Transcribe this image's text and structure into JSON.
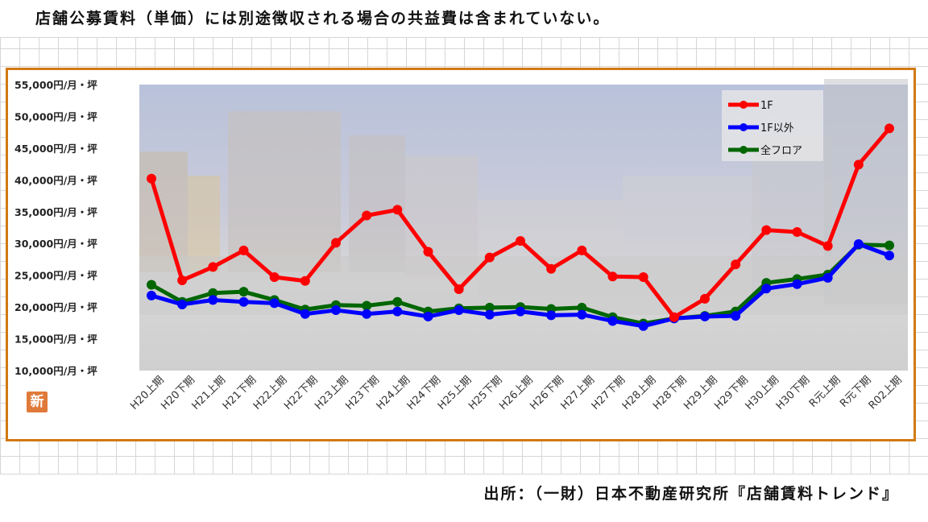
{
  "header": {
    "note": "店舗公募賃料（単価）には別途徴収される場合の共益費は含まれていない。"
  },
  "footer": {
    "source": "出所：（一財）日本不動産研究所『店舗賃料トレンド』"
  },
  "badge": {
    "label": "新"
  },
  "chart_data": {
    "type": "line",
    "title": "",
    "xlabel": "",
    "ylabel": "",
    "ylim": [
      10000,
      55000
    ],
    "y_ticks": [
      55000,
      50000,
      45000,
      40000,
      35000,
      30000,
      25000,
      20000,
      15000,
      10000
    ],
    "y_tick_labels": [
      "55,000円/月・坪",
      "50,000円/月・坪",
      "45,000円/月・坪",
      "40,000円/月・坪",
      "35,000円/月・坪",
      "30,000円/月・坪",
      "25,000円/月・坪",
      "20,000円/月・坪",
      "15,000円/月・坪",
      "10,000円/月・坪"
    ],
    "categories": [
      "H20上期",
      "H20下期",
      "H21上期",
      "H21下期",
      "H22上期",
      "H22下期",
      "H23上期",
      "H23下期",
      "H24上期",
      "H24下期",
      "H25上期",
      "H25下期",
      "H26上期",
      "H26下期",
      "H27上期",
      "H27下期",
      "H28上期",
      "H28下期",
      "H29上期",
      "H29下期",
      "H30上期",
      "H30下期",
      "R元上期",
      "R元下期",
      "R02上期"
    ],
    "series": [
      {
        "name": "1F",
        "color": "#ff0000",
        "values": [
          40200,
          24200,
          26300,
          28900,
          24700,
          24100,
          30100,
          34400,
          35300,
          28700,
          22800,
          27800,
          30400,
          26000,
          28900,
          24800,
          24700,
          18400,
          21300,
          26700,
          32100,
          31800,
          29600,
          42400,
          48100
        ]
      },
      {
        "name": "1F以外",
        "color": "#0000ff",
        "values": [
          21800,
          20400,
          21100,
          20800,
          20600,
          18900,
          19500,
          18900,
          19300,
          18500,
          19500,
          18800,
          19300,
          18700,
          18800,
          17800,
          17000,
          18200,
          18500,
          18600,
          22900,
          23600,
          24600,
          29900,
          28100
        ]
      },
      {
        "name": "全フロア",
        "color": "#006600",
        "values": [
          23500,
          20800,
          22200,
          22400,
          21100,
          19600,
          20300,
          20200,
          20800,
          19300,
          19800,
          19900,
          20000,
          19700,
          19900,
          18400,
          17400,
          18200,
          18600,
          19300,
          23800,
          24400,
          25100,
          29800,
          29700
        ]
      }
    ],
    "legend": "top-right",
    "grid": false
  }
}
